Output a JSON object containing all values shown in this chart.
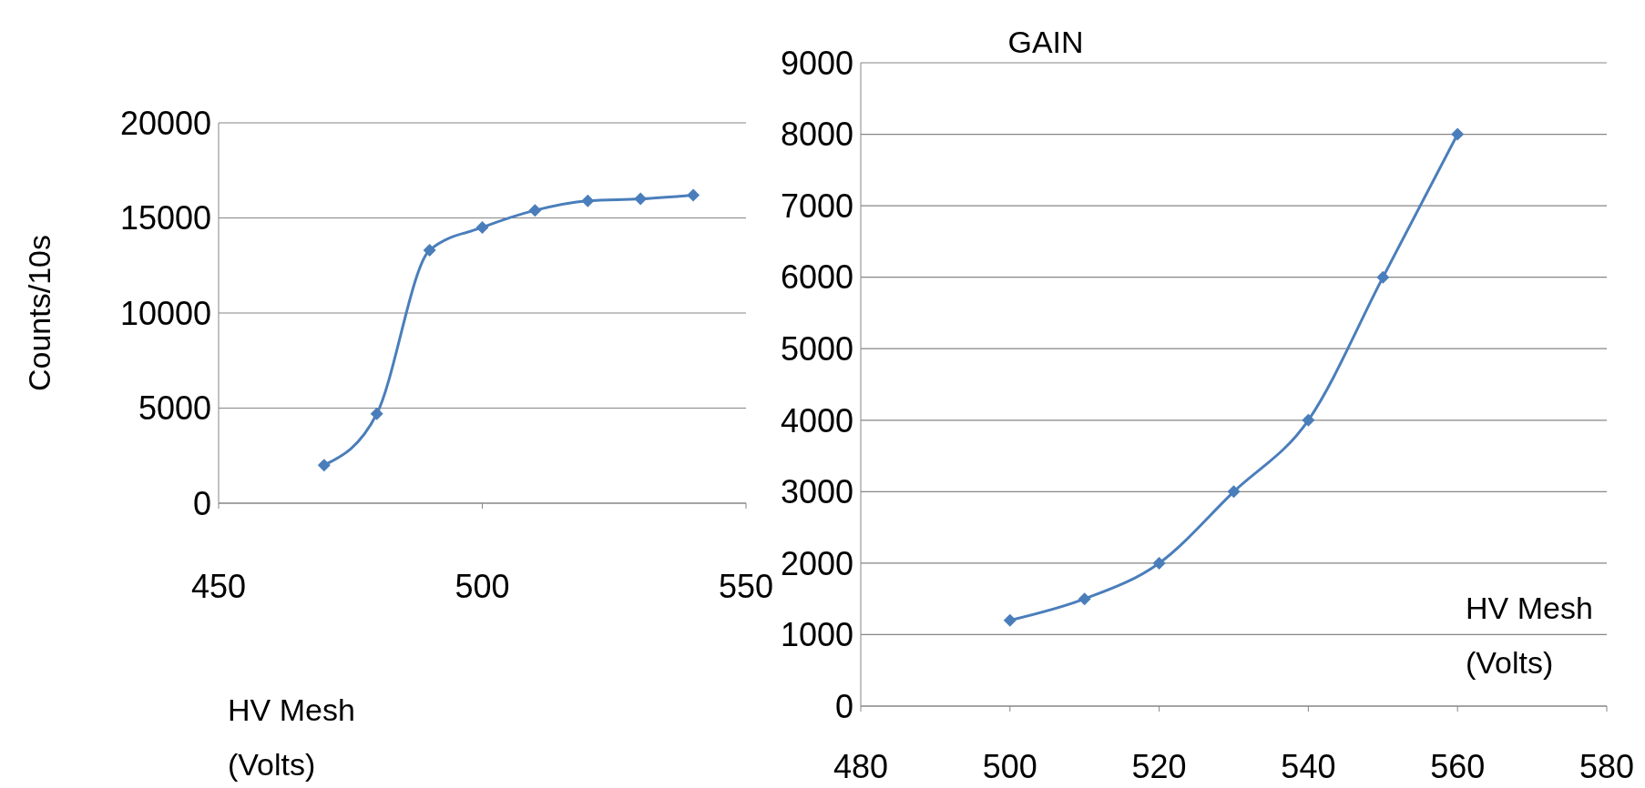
{
  "chart_data": [
    {
      "type": "line",
      "ylabel": "Counts/10s",
      "xlabel": "HV Mesh\n(Volts)",
      "x": [
        470,
        480,
        490,
        500,
        510,
        520,
        530,
        540
      ],
      "series": [
        {
          "color": "#4a7ebb",
          "values": [
            2000,
            4700,
            13300,
            14500,
            15400,
            15900,
            16000,
            16200
          ]
        }
      ],
      "xlim": [
        450,
        550
      ],
      "xticks": [
        450,
        500,
        550
      ],
      "ylim": [
        0,
        20000
      ],
      "yticks": [
        0,
        5000,
        10000,
        15000,
        20000
      ],
      "grid": "y",
      "marker": "diamond",
      "line_style": "solid"
    },
    {
      "type": "line",
      "title": "GAIN",
      "xlabel": "HV Mesh\n(Volts)",
      "x": [
        500,
        510,
        520,
        530,
        540,
        550,
        560
      ],
      "series": [
        {
          "color": "#4a7ebb",
          "values": [
            1200,
            1500,
            2000,
            3000,
            4000,
            6000,
            8000
          ]
        }
      ],
      "xlim": [
        480,
        580
      ],
      "xticks": [
        480,
        500,
        520,
        540,
        560,
        580
      ],
      "ylim": [
        0,
        9000
      ],
      "yticks": [
        0,
        1000,
        2000,
        3000,
        4000,
        5000,
        6000,
        7000,
        8000,
        9000
      ],
      "grid": "y",
      "marker": "diamond",
      "line_style": "solid"
    }
  ]
}
